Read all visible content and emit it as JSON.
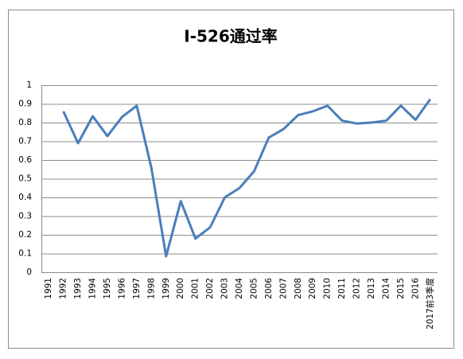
{
  "chart_data": {
    "type": "line",
    "title": "I-526通过率",
    "categories": [
      "1991",
      "1992",
      "1993",
      "1994",
      "1995",
      "1996",
      "1997",
      "1998",
      "1999",
      "2000",
      "2001",
      "2002",
      "2003",
      "2004",
      "2005",
      "2006",
      "2007",
      "2008",
      "2009",
      "2010",
      "2011",
      "2012",
      "2013",
      "2014",
      "2015",
      "2016",
      "2017前3季度"
    ],
    "values": [
      null,
      0.86,
      0.69,
      0.834,
      0.728,
      0.83,
      0.89,
      0.557,
      0.085,
      0.38,
      0.18,
      0.24,
      0.4,
      0.45,
      0.54,
      0.72,
      0.765,
      0.84,
      0.86,
      0.89,
      0.81,
      0.795,
      0.8,
      0.81,
      0.89,
      0.815,
      0.925
    ],
    "color": "#4a7ebb",
    "ylim": [
      0,
      1
    ],
    "yticks": [
      0,
      0.1,
      0.2,
      0.3,
      0.4,
      0.5,
      0.6,
      0.7,
      0.8,
      0.9,
      1
    ],
    "grid": true
  }
}
